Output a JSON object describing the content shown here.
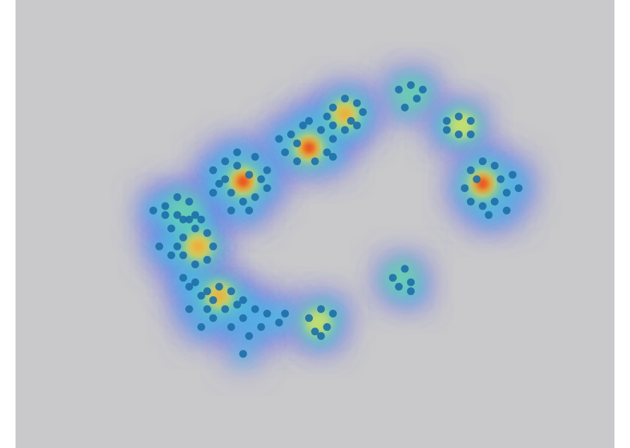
{
  "chart_data": {
    "type": "heatmap",
    "title": "",
    "xlabel": "",
    "ylabel": "",
    "grid": false,
    "legend": "none",
    "colors": {
      "background": "#c9c9cb",
      "point": "#1d6fa8",
      "colormap": [
        "#6f6fe8",
        "#3fc6e6",
        "#7ee08a",
        "#f4e84a",
        "#f59a2a",
        "#e41a12"
      ]
    },
    "xlim": [
      0,
      100
    ],
    "ylim": [
      0,
      100
    ],
    "clusters": [
      {
        "x": 38.0,
        "y": 59.5,
        "intensity": 1.0,
        "points": [
          [
            33,
            62
          ],
          [
            35,
            64
          ],
          [
            37,
            63
          ],
          [
            39,
            61
          ],
          [
            41,
            60
          ],
          [
            42,
            58
          ],
          [
            40,
            56
          ],
          [
            38,
            55
          ],
          [
            36,
            57
          ],
          [
            34,
            59
          ],
          [
            33,
            57
          ],
          [
            37,
            66
          ],
          [
            40,
            65
          ],
          [
            42,
            62
          ],
          [
            36,
            53
          ],
          [
            39,
            53
          ],
          [
            35,
            60
          ]
        ]
      },
      {
        "x": 49.0,
        "y": 67.0,
        "intensity": 0.95,
        "points": [
          [
            46,
            70
          ],
          [
            48,
            72
          ],
          [
            51,
            71
          ],
          [
            53,
            69
          ],
          [
            52,
            66
          ],
          [
            50,
            64
          ],
          [
            47,
            64
          ],
          [
            45,
            66
          ],
          [
            47,
            68
          ],
          [
            53,
            65
          ],
          [
            49,
            73
          ],
          [
            44,
            69
          ]
        ]
      },
      {
        "x": 55.0,
        "y": 74.5,
        "intensity": 0.7,
        "points": [
          [
            53,
            76
          ],
          [
            55,
            78
          ],
          [
            57,
            77
          ],
          [
            58,
            75
          ],
          [
            57,
            72
          ],
          [
            55,
            71
          ],
          [
            53,
            72
          ],
          [
            52,
            74
          ],
          [
            56,
            73
          ]
        ]
      },
      {
        "x": 66.0,
        "y": 79.0,
        "intensity": 0.3,
        "points": [
          [
            64,
            80
          ],
          [
            66,
            81
          ],
          [
            68,
            80
          ],
          [
            67,
            78
          ],
          [
            65,
            76
          ]
        ]
      },
      {
        "x": 74.5,
        "y": 72.0,
        "intensity": 0.55,
        "points": [
          [
            72,
            73
          ],
          [
            74,
            74
          ],
          [
            76,
            73
          ],
          [
            76,
            70
          ],
          [
            74,
            70
          ],
          [
            72,
            71
          ]
        ]
      },
      {
        "x": 78.0,
        "y": 59.0,
        "intensity": 0.9,
        "points": [
          [
            76,
            62
          ],
          [
            78,
            64
          ],
          [
            80,
            63
          ],
          [
            81,
            60
          ],
          [
            82,
            57
          ],
          [
            80,
            55
          ],
          [
            78,
            54
          ],
          [
            76,
            55
          ],
          [
            75,
            58
          ],
          [
            77,
            60
          ],
          [
            83,
            61
          ],
          [
            79,
            52
          ],
          [
            82,
            53
          ],
          [
            84,
            58
          ]
        ]
      },
      {
        "x": 30.5,
        "y": 45.0,
        "intensity": 0.8,
        "points": [
          [
            28,
            47
          ],
          [
            30,
            49
          ],
          [
            32,
            48
          ],
          [
            33,
            45
          ],
          [
            32,
            42
          ],
          [
            30,
            41
          ],
          [
            28,
            43
          ],
          [
            27,
            45
          ],
          [
            26,
            49
          ],
          [
            29,
            51
          ],
          [
            31,
            51
          ],
          [
            24,
            45
          ],
          [
            26,
            43
          ]
        ]
      },
      {
        "x": 28.0,
        "y": 53.0,
        "intensity": 0.4,
        "points": [
          [
            25,
            54
          ],
          [
            27,
            56
          ],
          [
            29,
            55
          ],
          [
            30,
            52
          ],
          [
            28,
            51
          ],
          [
            25,
            52
          ],
          [
            23,
            53
          ],
          [
            27,
            52
          ]
        ]
      },
      {
        "x": 34.0,
        "y": 34.0,
        "intensity": 0.65,
        "points": [
          [
            30,
            37
          ],
          [
            32,
            35
          ],
          [
            34,
            36
          ],
          [
            36,
            35
          ],
          [
            38,
            33
          ],
          [
            40,
            31
          ],
          [
            42,
            30
          ],
          [
            44,
            28
          ],
          [
            41,
            27
          ],
          [
            38,
            29
          ],
          [
            35,
            31
          ],
          [
            33,
            33
          ],
          [
            31,
            34
          ],
          [
            29,
            36
          ],
          [
            28,
            38
          ],
          [
            33,
            29
          ],
          [
            36,
            27
          ],
          [
            39,
            25
          ],
          [
            29,
            31
          ],
          [
            32,
            31
          ],
          [
            37,
            32
          ],
          [
            45,
            30
          ],
          [
            31,
            27
          ],
          [
            38,
            21
          ]
        ]
      },
      {
        "x": 50.5,
        "y": 28.0,
        "intensity": 0.5,
        "points": [
          [
            49,
            29
          ],
          [
            51,
            31
          ],
          [
            53,
            30
          ],
          [
            52,
            27
          ],
          [
            50,
            26
          ],
          [
            51,
            25
          ]
        ]
      },
      {
        "x": 64.5,
        "y": 38.0,
        "intensity": 0.3,
        "points": [
          [
            63,
            38
          ],
          [
            65,
            40
          ],
          [
            66,
            37
          ],
          [
            64,
            36
          ],
          [
            66,
            35
          ]
        ]
      }
    ]
  }
}
